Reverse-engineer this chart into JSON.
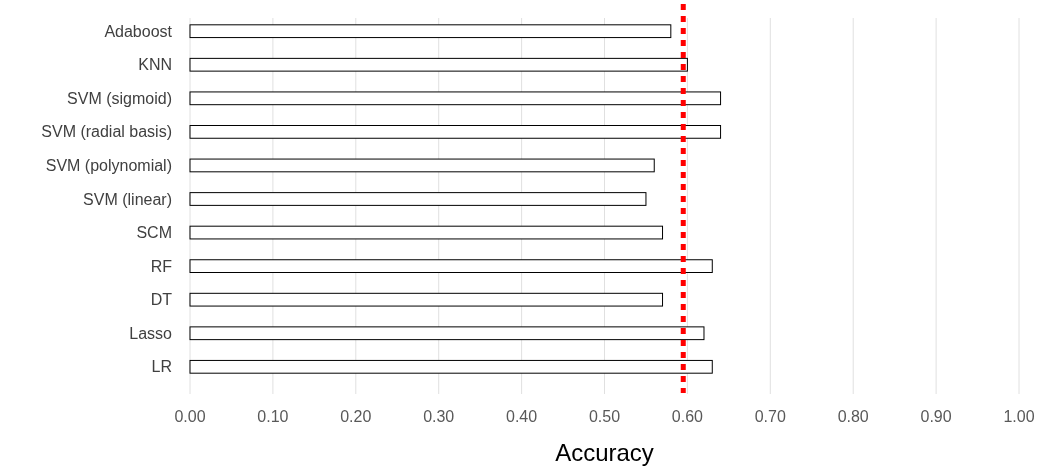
{
  "chart_data": {
    "type": "bar",
    "orientation": "horizontal",
    "xlabel": "Accuracy",
    "categories": [
      "Adaboost",
      "KNN",
      "SVM (sigmoid)",
      "SVM (radial basis)",
      "SVM (polynomial)",
      "SVM (linear)",
      "SCM",
      "RF",
      "DT",
      "Lasso",
      "LR"
    ],
    "values": [
      0.58,
      0.6,
      0.64,
      0.64,
      0.56,
      0.55,
      0.57,
      0.63,
      0.57,
      0.62,
      0.63
    ],
    "color": "#ffffff",
    "xlim": [
      0,
      1
    ],
    "xticks": [
      {
        "value": 0,
        "label": "0.00"
      },
      {
        "value": 0.1,
        "label": "0.10"
      },
      {
        "value": 0.2,
        "label": "0.20"
      },
      {
        "value": 0.3,
        "label": "0.30"
      },
      {
        "value": 0.4,
        "label": "0.40"
      },
      {
        "value": 0.5,
        "label": "0.50"
      },
      {
        "value": 0.6,
        "label": "0.60"
      },
      {
        "value": 0.7,
        "label": "0.70"
      },
      {
        "value": 0.8,
        "label": "0.80"
      },
      {
        "value": 0.9,
        "label": "0.90"
      },
      {
        "value": 1,
        "label": "1.00"
      }
    ],
    "grid": "x",
    "ref_lines": [
      {
        "axis": "x",
        "value": 0.595,
        "color": "#ff0000",
        "line_style": "dotted"
      }
    ]
  }
}
